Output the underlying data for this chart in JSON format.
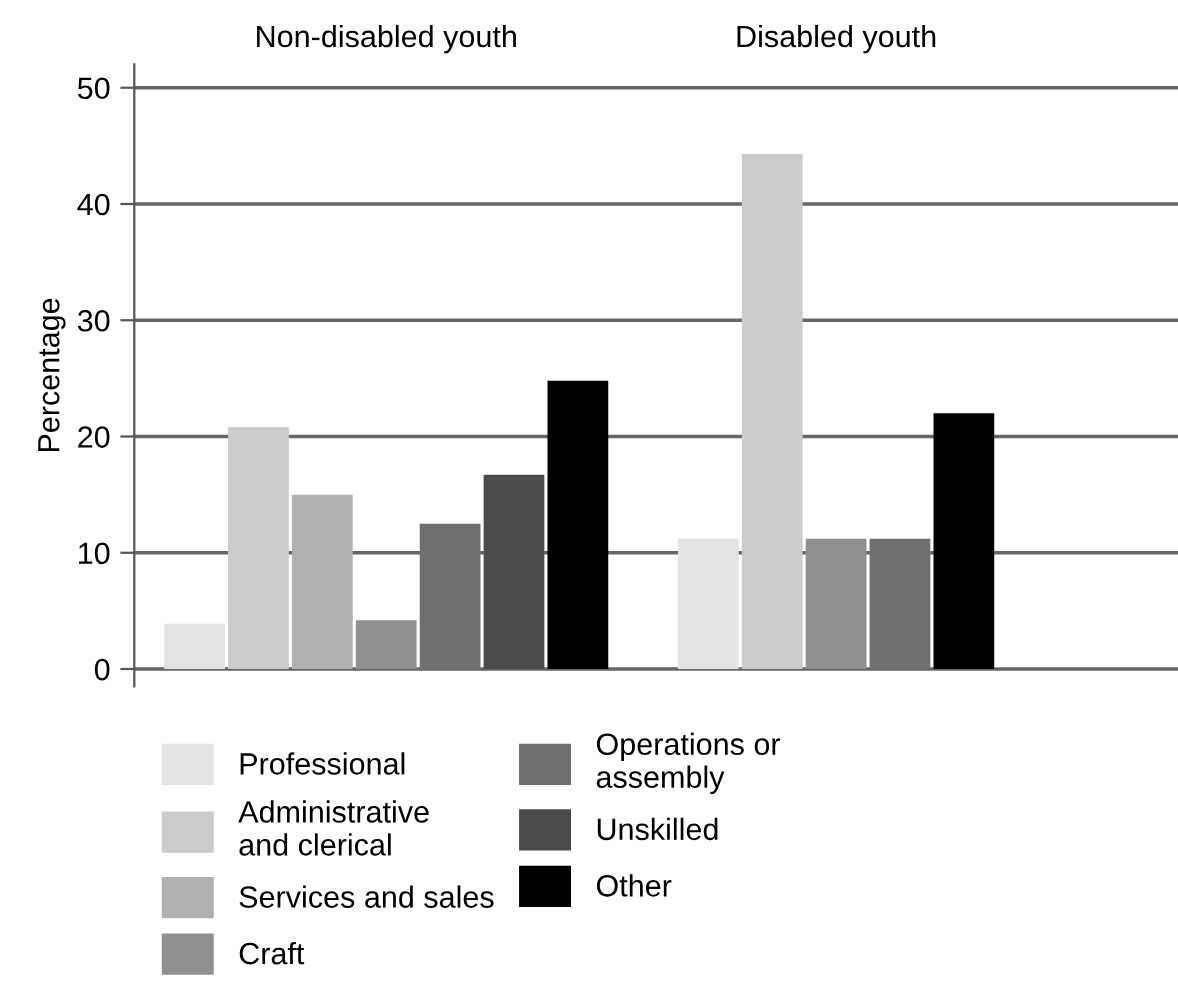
{
  "chart_data": {
    "type": "bar",
    "ylabel": "Percentage",
    "categories": [
      "Non-disabled youth",
      "Disabled youth"
    ],
    "ylim": [
      -1.5,
      52
    ],
    "yticks": [
      0,
      10,
      20,
      30,
      40,
      50
    ],
    "grid": "y",
    "legend": "bottom",
    "series": [
      {
        "name": "Professional",
        "color": "#e3e3e3",
        "values": [
          3.9,
          11.2
        ]
      },
      {
        "name": "Administrative\nand clerical",
        "color": "#cbcbcb",
        "values": [
          20.8,
          44.3
        ]
      },
      {
        "name": "Services and sales",
        "color": "#b0b0b0",
        "values": [
          15.0,
          null
        ]
      },
      {
        "name": "Craft",
        "color": "#909090",
        "values": [
          4.2,
          11.2
        ]
      },
      {
        "name": "Operations or\nassembly",
        "color": "#6f6f6f",
        "values": [
          12.5,
          11.2
        ]
      },
      {
        "name": "Unskilled",
        "color": "#4a4a4a",
        "values": [
          16.7,
          null
        ]
      },
      {
        "name": "Other",
        "color": "#000000",
        "values": [
          24.8,
          22.0
        ]
      }
    ]
  }
}
